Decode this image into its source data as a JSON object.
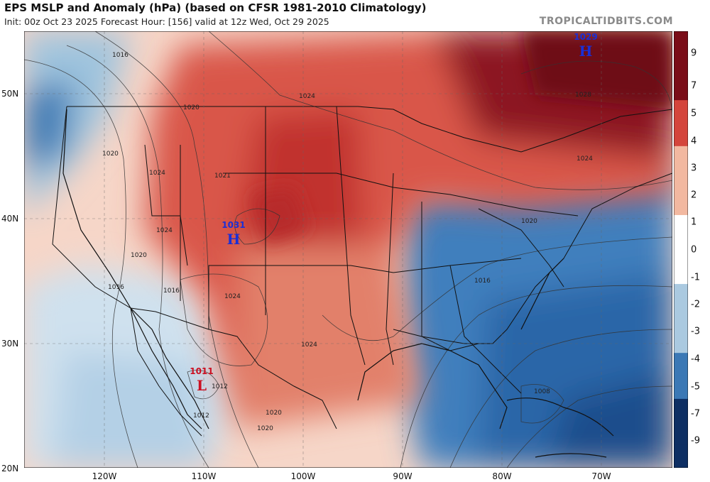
{
  "header": {
    "title": "EPS MSLP and Anomaly (hPa) (based on CFSR 1981-2010 Climatology)",
    "subtitle": "Init: 00z Oct 23 2025   Forecast Hour: [156]   valid at 12z Wed, Oct 29 2025",
    "watermark": "TROPICALTIDBITS.COM"
  },
  "axes": {
    "lat_labels": [
      "50N",
      "40N",
      "30N",
      "20N"
    ],
    "lon_labels": [
      "120W",
      "110W",
      "100W",
      "90W",
      "80W",
      "70W"
    ]
  },
  "colorbar": {
    "labels": [
      "9",
      "7",
      "5",
      "4",
      "3",
      "2",
      "1",
      "0",
      "-1",
      "-2",
      "-3",
      "-4",
      "-5",
      "-7",
      "-9"
    ],
    "colors": {
      "strong_positive": "#7a0d18",
      "positive": "#d4453c",
      "weak_positive": "#f2b8a0",
      "neutral": "#ffffff",
      "weak_negative": "#aac9e0",
      "negative": "#3b78b5",
      "strong_negative": "#0e2f63"
    }
  },
  "pressure_centers": [
    {
      "type": "H",
      "value": "1029",
      "color": "#1a2fd6"
    },
    {
      "type": "H",
      "value": "1031",
      "color": "#1a2fd6"
    },
    {
      "type": "L",
      "value": "1011",
      "color": "#cc1122"
    }
  ],
  "isobar_labels": [
    "1016",
    "1020",
    "1024",
    "1020",
    "1024",
    "1021",
    "1024",
    "1020",
    "1016",
    "1016",
    "1024",
    "1024",
    "1028",
    "1024",
    "1020",
    "1016",
    "1012",
    "1012",
    "1020",
    "1020",
    "1008"
  ]
}
